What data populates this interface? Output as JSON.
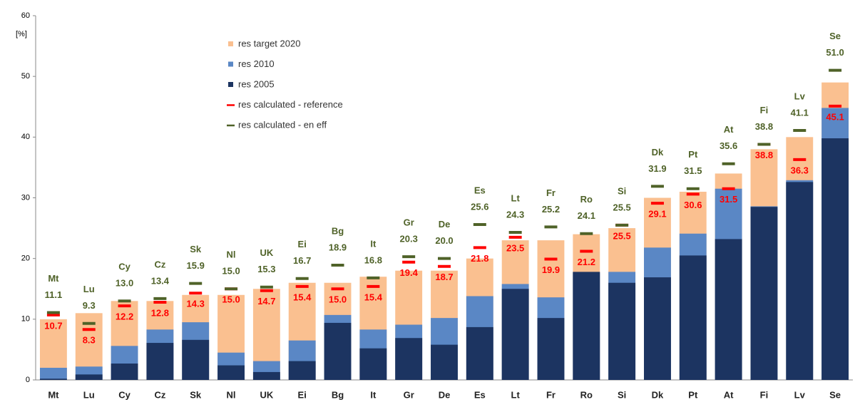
{
  "chart_data": {
    "type": "bar",
    "y_label": "[%]",
    "categories": [
      "Mt",
      "Lu",
      "Cy",
      "Cz",
      "Sk",
      "Nl",
      "UK",
      "Ei",
      "Bg",
      "It",
      "Gr",
      "De",
      "Es",
      "Lt",
      "Fr",
      "Ro",
      "Si",
      "Dk",
      "Pt",
      "At",
      "Fi",
      "Lv",
      "Se"
    ],
    "series": [
      {
        "name": "res target 2020",
        "style": "bar",
        "color": "#fac090",
        "values": [
          10,
          11,
          13,
          13,
          14,
          14,
          15,
          16,
          16,
          17,
          18,
          18,
          20,
          23,
          23,
          24,
          25,
          30,
          31,
          34,
          38,
          40,
          49
        ]
      },
      {
        "name": "res 2010",
        "style": "bar",
        "color": "#5a87c5",
        "values": [
          2.0,
          2.2,
          5.6,
          8.3,
          9.5,
          4.5,
          3.1,
          6.5,
          10.7,
          8.3,
          9.1,
          10.2,
          13.8,
          15.8,
          13.6,
          17.7,
          17.8,
          21.8,
          24.1,
          31.5,
          28.6,
          32.9,
          44.8
        ]
      },
      {
        "name": "res 2005",
        "style": "bar",
        "color": "#1c3461",
        "values": [
          0.2,
          0.9,
          2.7,
          6.1,
          6.6,
          2.4,
          1.3,
          3.1,
          9.4,
          5.2,
          6.9,
          5.8,
          8.7,
          15.0,
          10.2,
          17.8,
          16.0,
          16.9,
          20.5,
          23.2,
          28.5,
          32.6,
          39.8
        ]
      },
      {
        "name": "res calculated - reference",
        "style": "marker",
        "color": "#ff0000",
        "values": [
          10.7,
          8.3,
          12.2,
          12.8,
          14.3,
          15.0,
          14.7,
          15.4,
          15.0,
          15.4,
          19.4,
          18.7,
          21.8,
          23.5,
          19.9,
          21.2,
          25.5,
          29.1,
          30.6,
          31.5,
          38.8,
          36.3,
          45.1
        ],
        "value_labels": [
          "10.7",
          "8.3",
          "12.2",
          "12.8",
          "14.3",
          "15.0",
          "14.7",
          "15.4",
          "15.0",
          "15.4",
          "19.4",
          "18.7",
          "21.8",
          "23.5",
          "19.9",
          "21.2",
          "25.5",
          "29.1",
          "30.6",
          "31.5",
          "38.8",
          "36.3",
          "45.1"
        ]
      },
      {
        "name": "res calculated - en eff",
        "style": "marker",
        "color": "#4f6228",
        "values": [
          11.1,
          9.3,
          13.0,
          13.4,
          15.9,
          15.0,
          15.3,
          16.7,
          18.9,
          16.8,
          20.3,
          20.0,
          25.6,
          24.3,
          25.2,
          24.1,
          25.5,
          31.9,
          31.5,
          35.6,
          38.8,
          41.1,
          51.0
        ],
        "value_labels": [
          "11.1",
          "9.3",
          "13.0",
          "13.4",
          "15.9",
          "15.0",
          "15.3",
          "16.7",
          "18.9",
          "16.8",
          "20.3",
          "20.0",
          "25.6",
          "24.3",
          "25.2",
          "24.1",
          "25.5",
          "31.9",
          "31.5",
          "35.6",
          "38.8",
          "41.1",
          "51.0"
        ]
      }
    ],
    "ylim": [
      0,
      60
    ],
    "yticks": [
      0,
      10,
      20,
      30,
      40,
      50,
      60
    ],
    "grid": false
  }
}
